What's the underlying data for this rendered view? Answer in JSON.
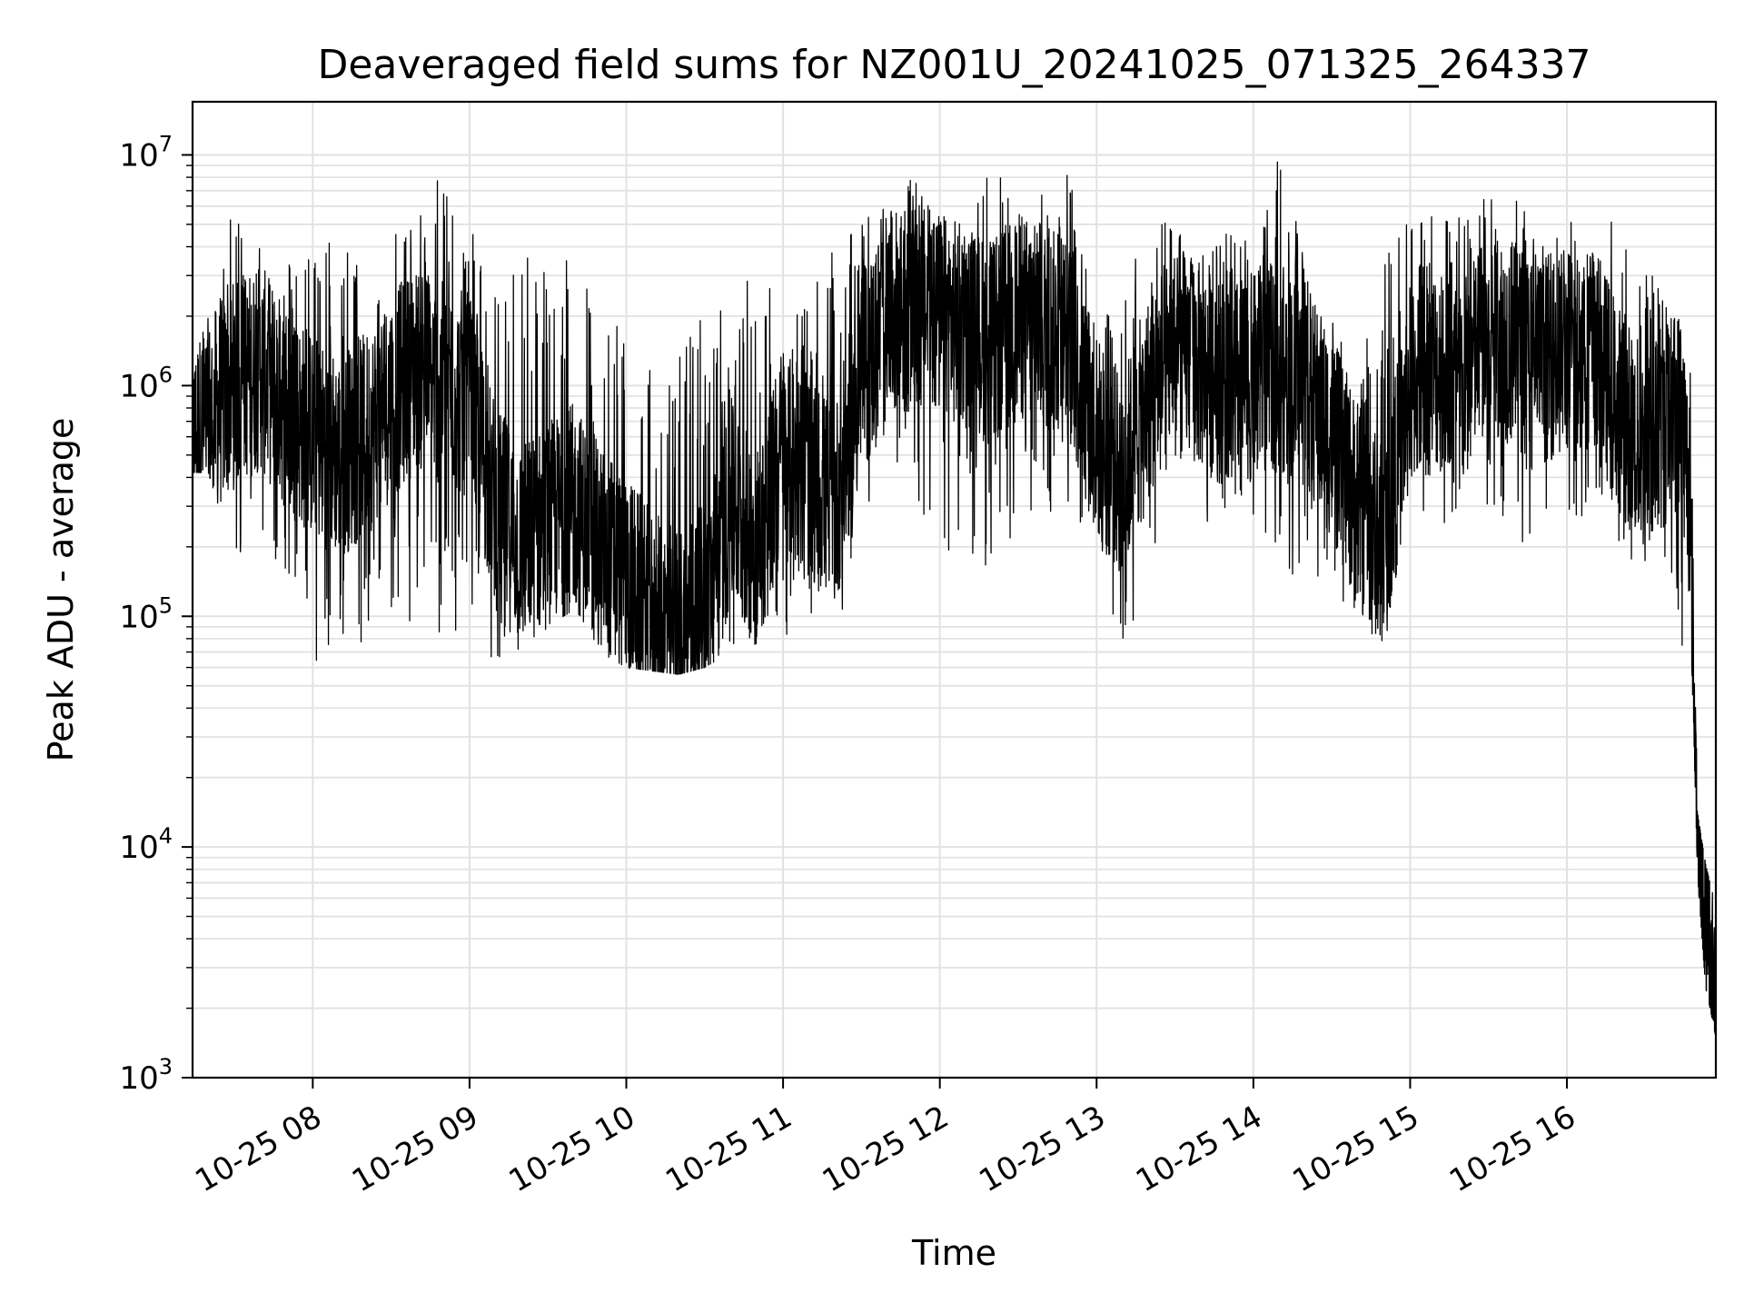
{
  "chart_data": {
    "type": "line",
    "title": "Deaveraged field sums for NZ001U_20241025_071325_264337",
    "xlabel": "Time",
    "ylabel": "Peak ADU - average",
    "yscale": "log",
    "ylim": [
      1000,
      17000000
    ],
    "xlim": [
      "2024-10-25 07:14",
      "2024-10-25 16:57"
    ],
    "grid": true,
    "line_color": "#000000",
    "x_ticks": [
      {
        "label": "10-25 08",
        "value": "2024-10-25 08:00"
      },
      {
        "label": "10-25 09",
        "value": "2024-10-25 09:00"
      },
      {
        "label": "10-25 10",
        "value": "2024-10-25 10:00"
      },
      {
        "label": "10-25 11",
        "value": "2024-10-25 11:00"
      },
      {
        "label": "10-25 12",
        "value": "2024-10-25 12:00"
      },
      {
        "label": "10-25 13",
        "value": "2024-10-25 13:00"
      },
      {
        "label": "10-25 14",
        "value": "2024-10-25 14:00"
      },
      {
        "label": "10-25 15",
        "value": "2024-10-25 15:00"
      },
      {
        "label": "10-25 16",
        "value": "2024-10-25 16:00"
      }
    ],
    "y_ticks": [
      {
        "base": "10",
        "exp": "3",
        "value": 1000
      },
      {
        "base": "10",
        "exp": "4",
        "value": 10000
      },
      {
        "base": "10",
        "exp": "5",
        "value": 100000
      },
      {
        "base": "10",
        "exp": "6",
        "value": 1000000
      },
      {
        "base": "10",
        "exp": "7",
        "value": 10000000
      }
    ],
    "series": [
      {
        "x": [
          "2024-10-25 07:14",
          "2024-10-25 07:20",
          "2024-10-25 07:30",
          "2024-10-25 07:40",
          "2024-10-25 07:50",
          "2024-10-25 08:00",
          "2024-10-25 08:10",
          "2024-10-25 08:20",
          "2024-10-25 08:30",
          "2024-10-25 08:40",
          "2024-10-25 08:50",
          "2024-10-25 09:00",
          "2024-10-25 09:10",
          "2024-10-25 09:20",
          "2024-10-25 09:30",
          "2024-10-25 09:40",
          "2024-10-25 09:50",
          "2024-10-25 10:00",
          "2024-10-25 10:10",
          "2024-10-25 10:20",
          "2024-10-25 10:30",
          "2024-10-25 10:40",
          "2024-10-25 10:50",
          "2024-10-25 11:00",
          "2024-10-25 11:10",
          "2024-10-25 11:20",
          "2024-10-25 11:30",
          "2024-10-25 11:40",
          "2024-10-25 11:50",
          "2024-10-25 12:00",
          "2024-10-25 12:10",
          "2024-10-25 12:20",
          "2024-10-25 12:30",
          "2024-10-25 12:40",
          "2024-10-25 12:50",
          "2024-10-25 13:00",
          "2024-10-25 13:10",
          "2024-10-25 13:20",
          "2024-10-25 13:30",
          "2024-10-25 13:40",
          "2024-10-25 13:50",
          "2024-10-25 14:00",
          "2024-10-25 14:10",
          "2024-10-25 14:20",
          "2024-10-25 14:30",
          "2024-10-25 14:40",
          "2024-10-25 14:50",
          "2024-10-25 15:00",
          "2024-10-25 15:10",
          "2024-10-25 15:20",
          "2024-10-25 15:30",
          "2024-10-25 15:40",
          "2024-10-25 15:50",
          "2024-10-25 16:00",
          "2024-10-25 16:10",
          "2024-10-25 16:20",
          "2024-10-25 16:30",
          "2024-10-25 16:38",
          "2024-10-25 16:44",
          "2024-10-25 16:47",
          "2024-10-25 16:50",
          "2024-10-25 16:53",
          "2024-10-25 16:57"
        ],
        "y": [
          600000,
          700000,
          1000000,
          1200000,
          800000,
          600000,
          500000,
          600000,
          900000,
          1200000,
          1000000,
          900000,
          300000,
          200000,
          250000,
          300000,
          200000,
          150000,
          100000,
          90000,
          110000,
          300000,
          200000,
          500000,
          400000,
          300000,
          1100000,
          2000000,
          2200000,
          2000000,
          1800000,
          1500000,
          2000000,
          1800000,
          1500000,
          600000,
          400000,
          900000,
          1500000,
          1200000,
          1000000,
          1100000,
          1200000,
          1000000,
          600000,
          300000,
          200000,
          1000000,
          1200000,
          1000000,
          1800000,
          1500000,
          1300000,
          1400000,
          1500000,
          800000,
          500000,
          700000,
          800000,
          300000,
          10000,
          5000,
          2000
        ],
        "min": [
          420000,
          420000,
          180000,
          110000,
          90000,
          60000,
          75000,
          75000,
          110000,
          90000,
          70000,
          80000,
          60000,
          70000,
          75000,
          80000,
          70000,
          60000,
          58000,
          56000,
          60000,
          70000,
          70000,
          80000,
          70000,
          75000,
          110000,
          400000,
          280000,
          200000,
          180000,
          160000,
          200000,
          250000,
          240000,
          180000,
          70000,
          130000,
          260000,
          240000,
          280000,
          250000,
          200000,
          110000,
          150000,
          80000,
          70000,
          300000,
          250000,
          250000,
          220000,
          200000,
          200000,
          230000,
          300000,
          180000,
          160000,
          180000,
          60000,
          130000,
          7500,
          2500,
          1500
        ],
        "max": [
          1000000,
          2500000,
          6000000,
          4500000,
          3500000,
          4000000,
          4800000,
          3000000,
          5800000,
          5000000,
          10500000,
          5000000,
          3000000,
          4000000,
          4500000,
          5500000,
          1500000,
          2500000,
          1700000,
          1600000,
          2500000,
          2000000,
          4200000,
          2000000,
          2500000,
          4000000,
          5000000,
          7500000,
          7800000,
          7000000,
          4500000,
          9800000,
          5500000,
          7000000,
          9000000,
          2000000,
          3000000,
          5500000,
          5000000,
          4500000,
          5000000,
          4000000,
          10500000,
          3500000,
          2000000,
          1000000,
          5200000,
          5000000,
          6000000,
          5500000,
          7000000,
          9000000,
          4000000,
          5500000,
          4500000,
          5800000,
          4000000,
          2600000,
          2000000,
          1800000,
          14000,
          8500,
          5500
        ]
      }
    ]
  }
}
